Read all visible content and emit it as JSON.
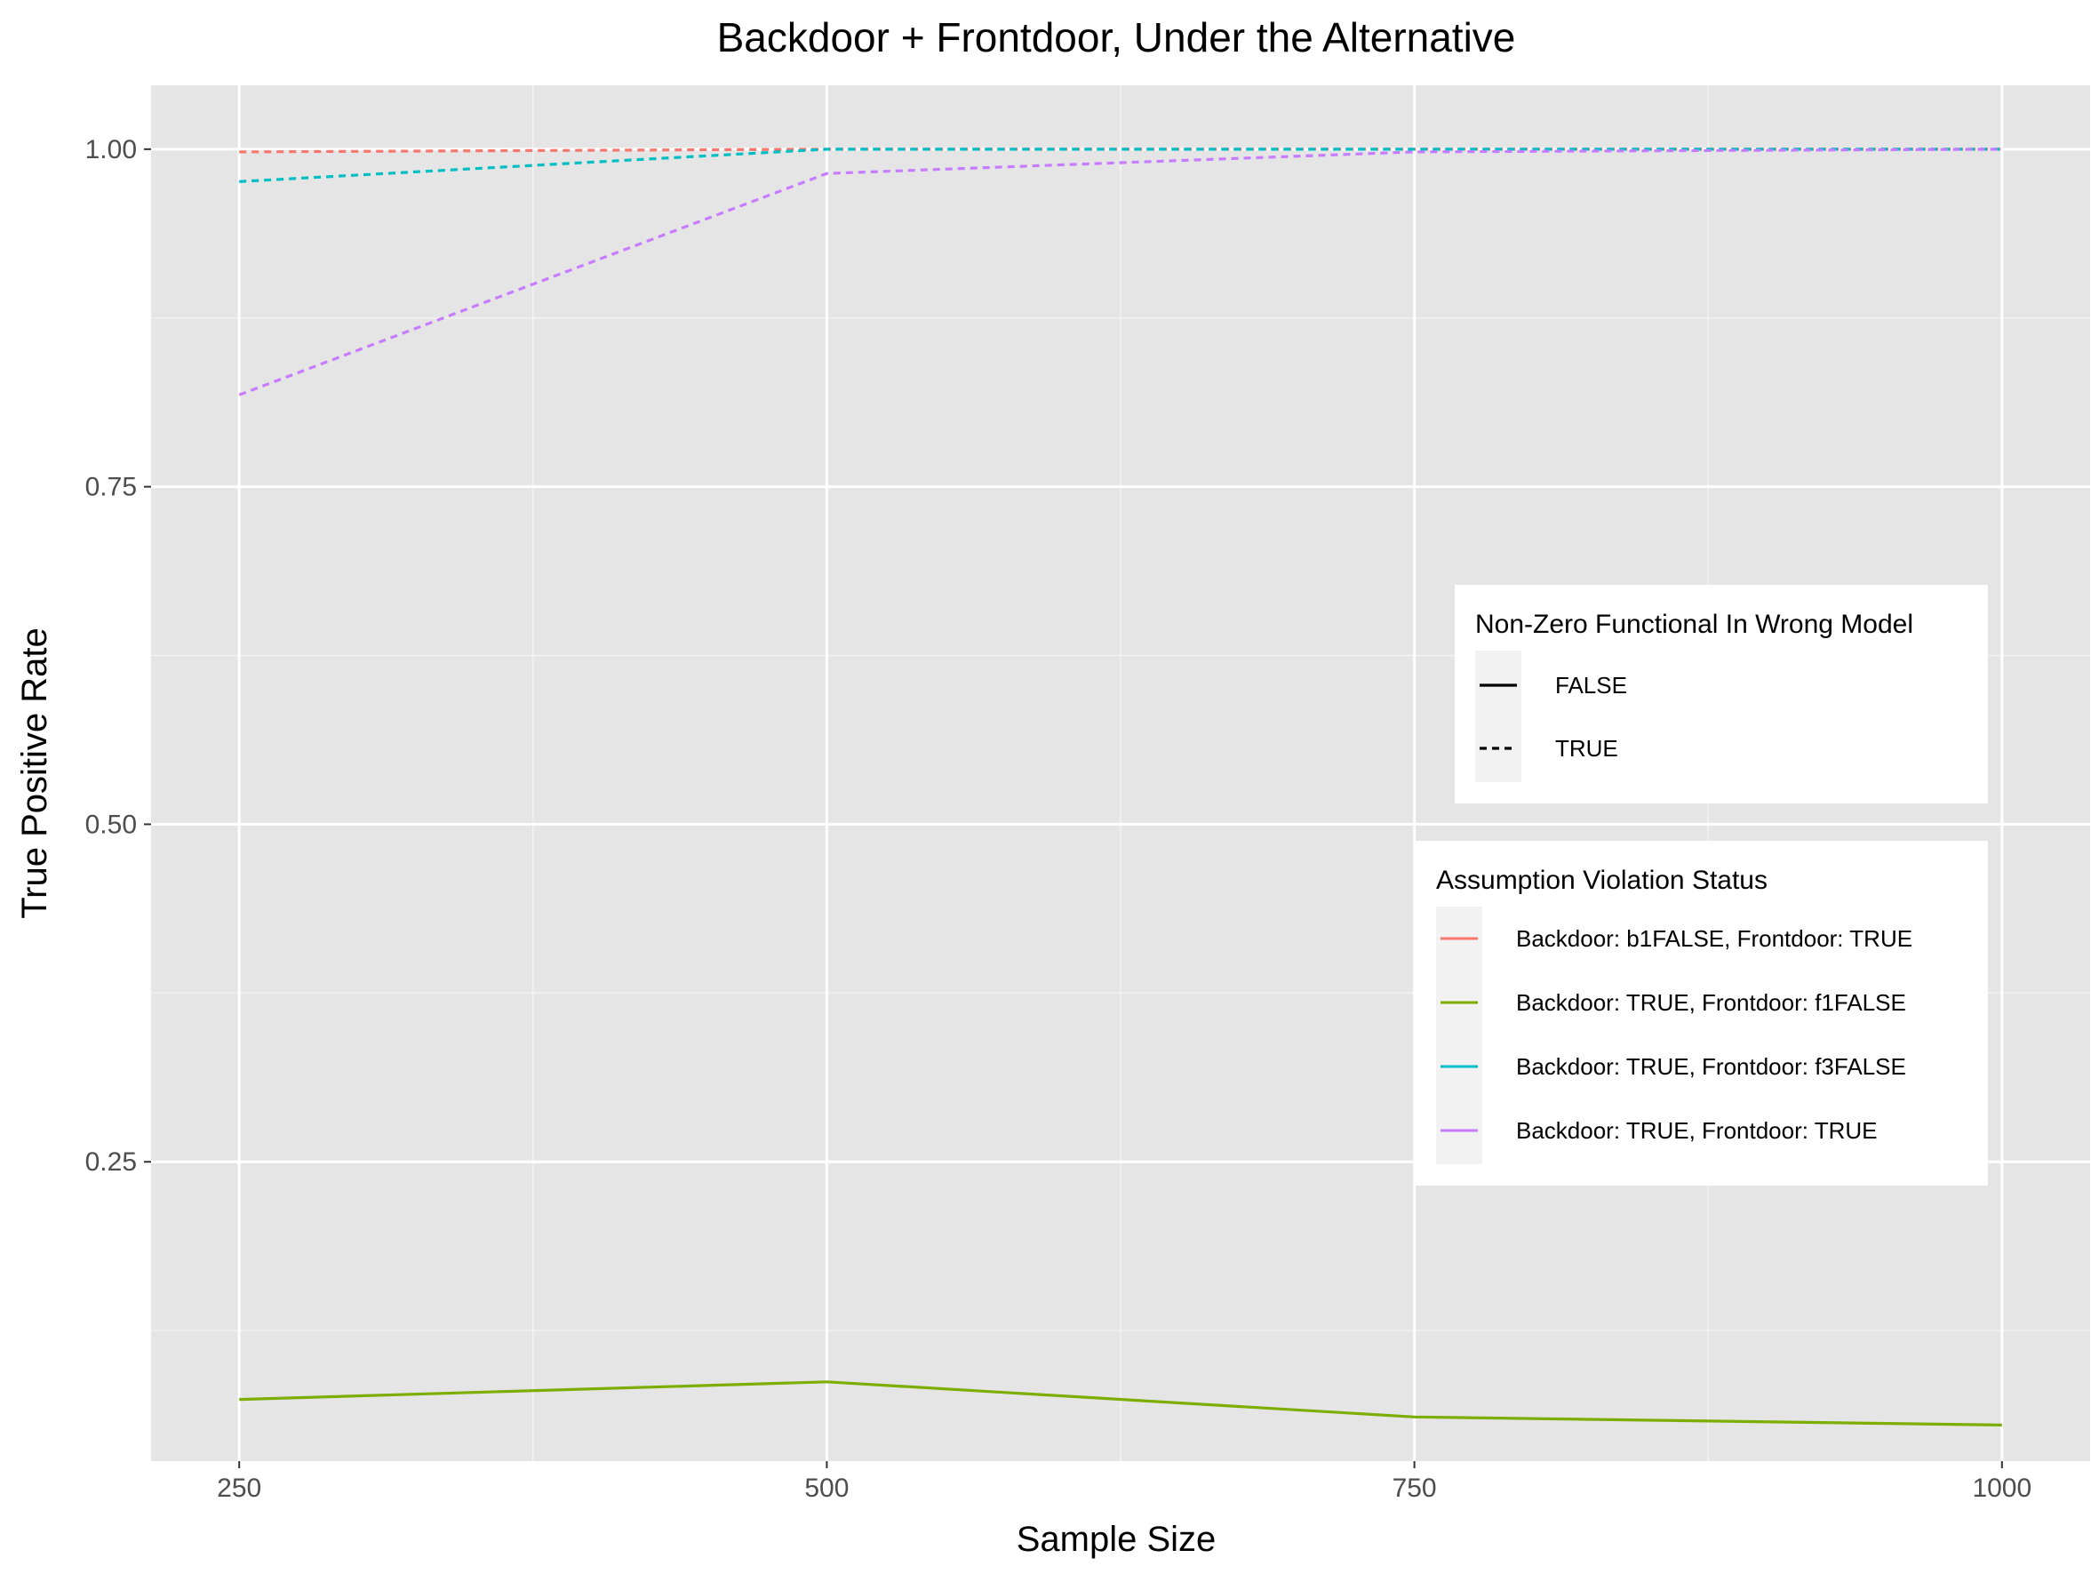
{
  "chart_data": {
    "type": "line",
    "title": "Backdoor + Frontdoor, Under the Alternative",
    "xlabel": "Sample Size",
    "ylabel": "True Positive Rate",
    "x": [
      250,
      500,
      750,
      1000
    ],
    "x_ticks": [
      250,
      500,
      750,
      1000
    ],
    "x_tick_labels": [
      "250",
      "500",
      "750",
      "1000"
    ],
    "y_ticks": [
      0.25,
      0.5,
      0.75,
      1.0
    ],
    "y_tick_labels": [
      "0.25",
      "0.50",
      "0.75",
      "1.00"
    ],
    "xlim": [
      212.5,
      1037.5
    ],
    "ylim": [
      0.0283,
      1.0473
    ],
    "grid": true,
    "series": [
      {
        "name": "Backdoor: b1FALSE, Frontdoor: TRUE",
        "color": "#F8766D",
        "linetype": "dashed",
        "values": [
          0.998,
          1.0,
          1.0,
          1.0
        ]
      },
      {
        "name": "Backdoor: TRUE, Frontdoor: f1FALSE",
        "color": "#7CAE00",
        "linetype": "solid",
        "values": [
          0.074,
          0.087,
          0.061,
          0.055
        ]
      },
      {
        "name": "Backdoor: TRUE, Frontdoor: f3FALSE",
        "color": "#00BFC4",
        "linetype": "dashed",
        "values": [
          0.976,
          1.0,
          1.0,
          1.0
        ]
      },
      {
        "name": "Backdoor: TRUE, Frontdoor: TRUE",
        "color": "#C77CFF",
        "linetype": "dashed",
        "values": [
          0.818,
          0.982,
          0.998,
          1.0
        ]
      }
    ],
    "legends": [
      {
        "title": "Non-Zero Functional In Wrong Model",
        "entries": [
          {
            "label": "FALSE",
            "linetype": "solid"
          },
          {
            "label": "TRUE",
            "linetype": "dashed"
          }
        ]
      },
      {
        "title": "Assumption Violation Status",
        "entries": [
          {
            "label": "Backdoor: b1FALSE, Frontdoor: TRUE",
            "color": "#F8766D"
          },
          {
            "label": "Backdoor: TRUE, Frontdoor: f1FALSE",
            "color": "#7CAE00"
          },
          {
            "label": "Backdoor: TRUE, Frontdoor: f3FALSE",
            "color": "#00BFC4"
          },
          {
            "label": "Backdoor: TRUE, Frontdoor: TRUE",
            "color": "#C77CFF"
          }
        ]
      }
    ],
    "legend_placement": "right-inside",
    "panel_background": "#E5E5E5"
  }
}
